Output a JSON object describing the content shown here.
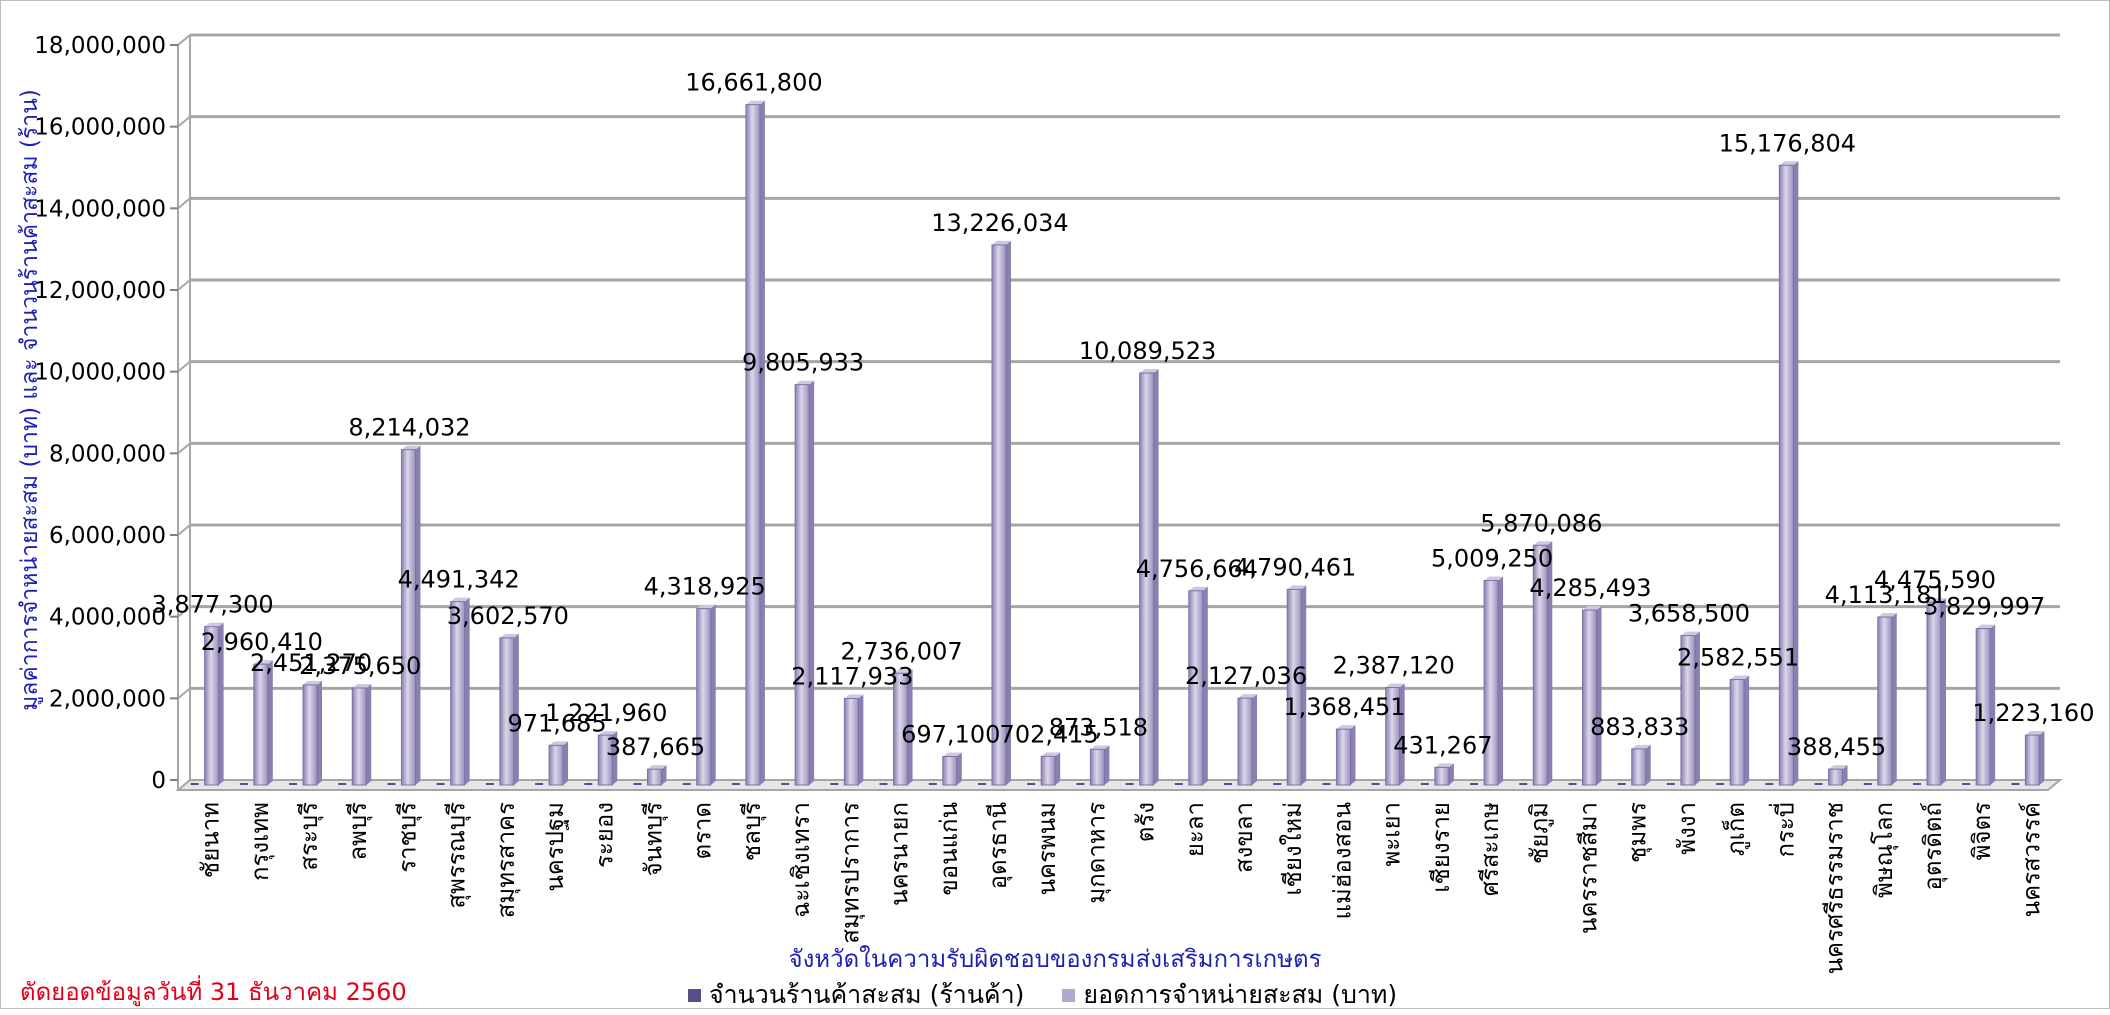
{
  "colors": {
    "stores_series": "#5b4d8a",
    "sales_series": "#b3a9cc",
    "bar_dark": "#8a7fb0",
    "bar_light": "#dcd6ea",
    "axis_title": "#1f1fb4",
    "footer_note": "#e0001a",
    "grid": "#a6a6a6"
  },
  "footer_note": "ตัดยอดข้อมูลวันที่ 31 ธันวาคม 2560",
  "chart_data": {
    "type": "bar",
    "xlabel": "จังหวัดในความรับผิดชอบของกรมส่งเสริมการเกษตร",
    "ylabel": "มูลค่าการจำหน่ายสะสม  (บาท)   และ  จำนวนร้านค้าสะสม  (ร้าน)",
    "ylim": [
      0,
      18000000
    ],
    "yticks": [
      "0",
      "2,000,000",
      "4,000,000",
      "6,000,000",
      "8,000,000",
      "10,000,000",
      "12,000,000",
      "14,000,000",
      "16,000,000",
      "18,000,000"
    ],
    "grid": true,
    "legend_position": "bottom",
    "categories": [
      "ชัยนาท",
      "กรุงเทพ",
      "สระบุรี",
      "ลพบุรี",
      "ราชบุรี",
      "สุพรรณบุรี",
      "สมุทรสาคร",
      "นครปฐม",
      "ระยอง",
      "จันทบุรี",
      "ตราด",
      "ชลบุรี",
      "ฉะเชิงเทรา",
      "สมุทรปราการ",
      "นครนายก",
      "ขอนแก่น",
      "อุดรธานี",
      "นครพนม",
      "มุกดาหาร",
      "ตรัง",
      "ยะลา",
      "สงขลา",
      "เชียงใหม่",
      "แม่ฮ่องสอน",
      "พะเยา",
      "เชียงราย",
      "ศรีสะเกษ",
      "ชัยภูมิ",
      "นครราชสีมา",
      "ชุมพร",
      "พังงา",
      "ภูเก็ต",
      "กระบี่",
      "นครศรีธรรมราช",
      "พิษณุโลก",
      "อุตรดิตถ์",
      "พิจิตร",
      "นครสวรรค์"
    ],
    "series": [
      {
        "name": "จำนวนร้านค้าสะสม (ร้านค้า)",
        "values": [
          27,
          10,
          16,
          11,
          14,
          22,
          18,
          10,
          5,
          1,
          15,
          57,
          28,
          16,
          17,
          15,
          24,
          16,
          13,
          19,
          24,
          25,
          22,
          11,
          23,
          15,
          26,
          20,
          22,
          16,
          10,
          12,
          37,
          34,
          23,
          15,
          10,
          21
        ],
        "labels": []
      },
      {
        "name": "ยอดการจำหน่ายสะสม (บาท)",
        "values": [
          3877300,
          2960410,
          2451270,
          2375650,
          8214032,
          4491342,
          3602570,
          971685,
          1221960,
          387665,
          4318925,
          16661800,
          9805933,
          2117933,
          2736007,
          697100,
          13226034,
          702415,
          873518,
          10089523,
          4756664,
          2127036,
          4790461,
          1368451,
          2387120,
          431267,
          5009250,
          5870086,
          4285493,
          883833,
          3658500,
          2582551,
          15176804,
          388455,
          4113181,
          4475590,
          3829997,
          1223160
        ],
        "labels": [
          "3,877,300",
          "2,960,410",
          "2,451,270",
          "2,375,650",
          "8,214,032",
          "4,491,342",
          "3,602,570",
          "971,685",
          "1,221,960",
          "387,665",
          "4,318,925",
          "16,661,800",
          "9,805,933",
          "2,117,933",
          "2,736,007",
          "697,100",
          "13,226,034",
          "702,415",
          "873,518",
          "10,089,523",
          "4,756,664",
          "2,127,036",
          "4,790,461",
          "1,368,451",
          "2,387,120",
          "431,267",
          "5,009,250",
          "5,870,086",
          "4,285,493",
          "883,833",
          "3,658,500",
          "2,582,551",
          "15,176,804",
          "388,455",
          "4,113,181",
          "4,475,590",
          "3,829,997",
          "1,223,160"
        ]
      }
    ]
  }
}
